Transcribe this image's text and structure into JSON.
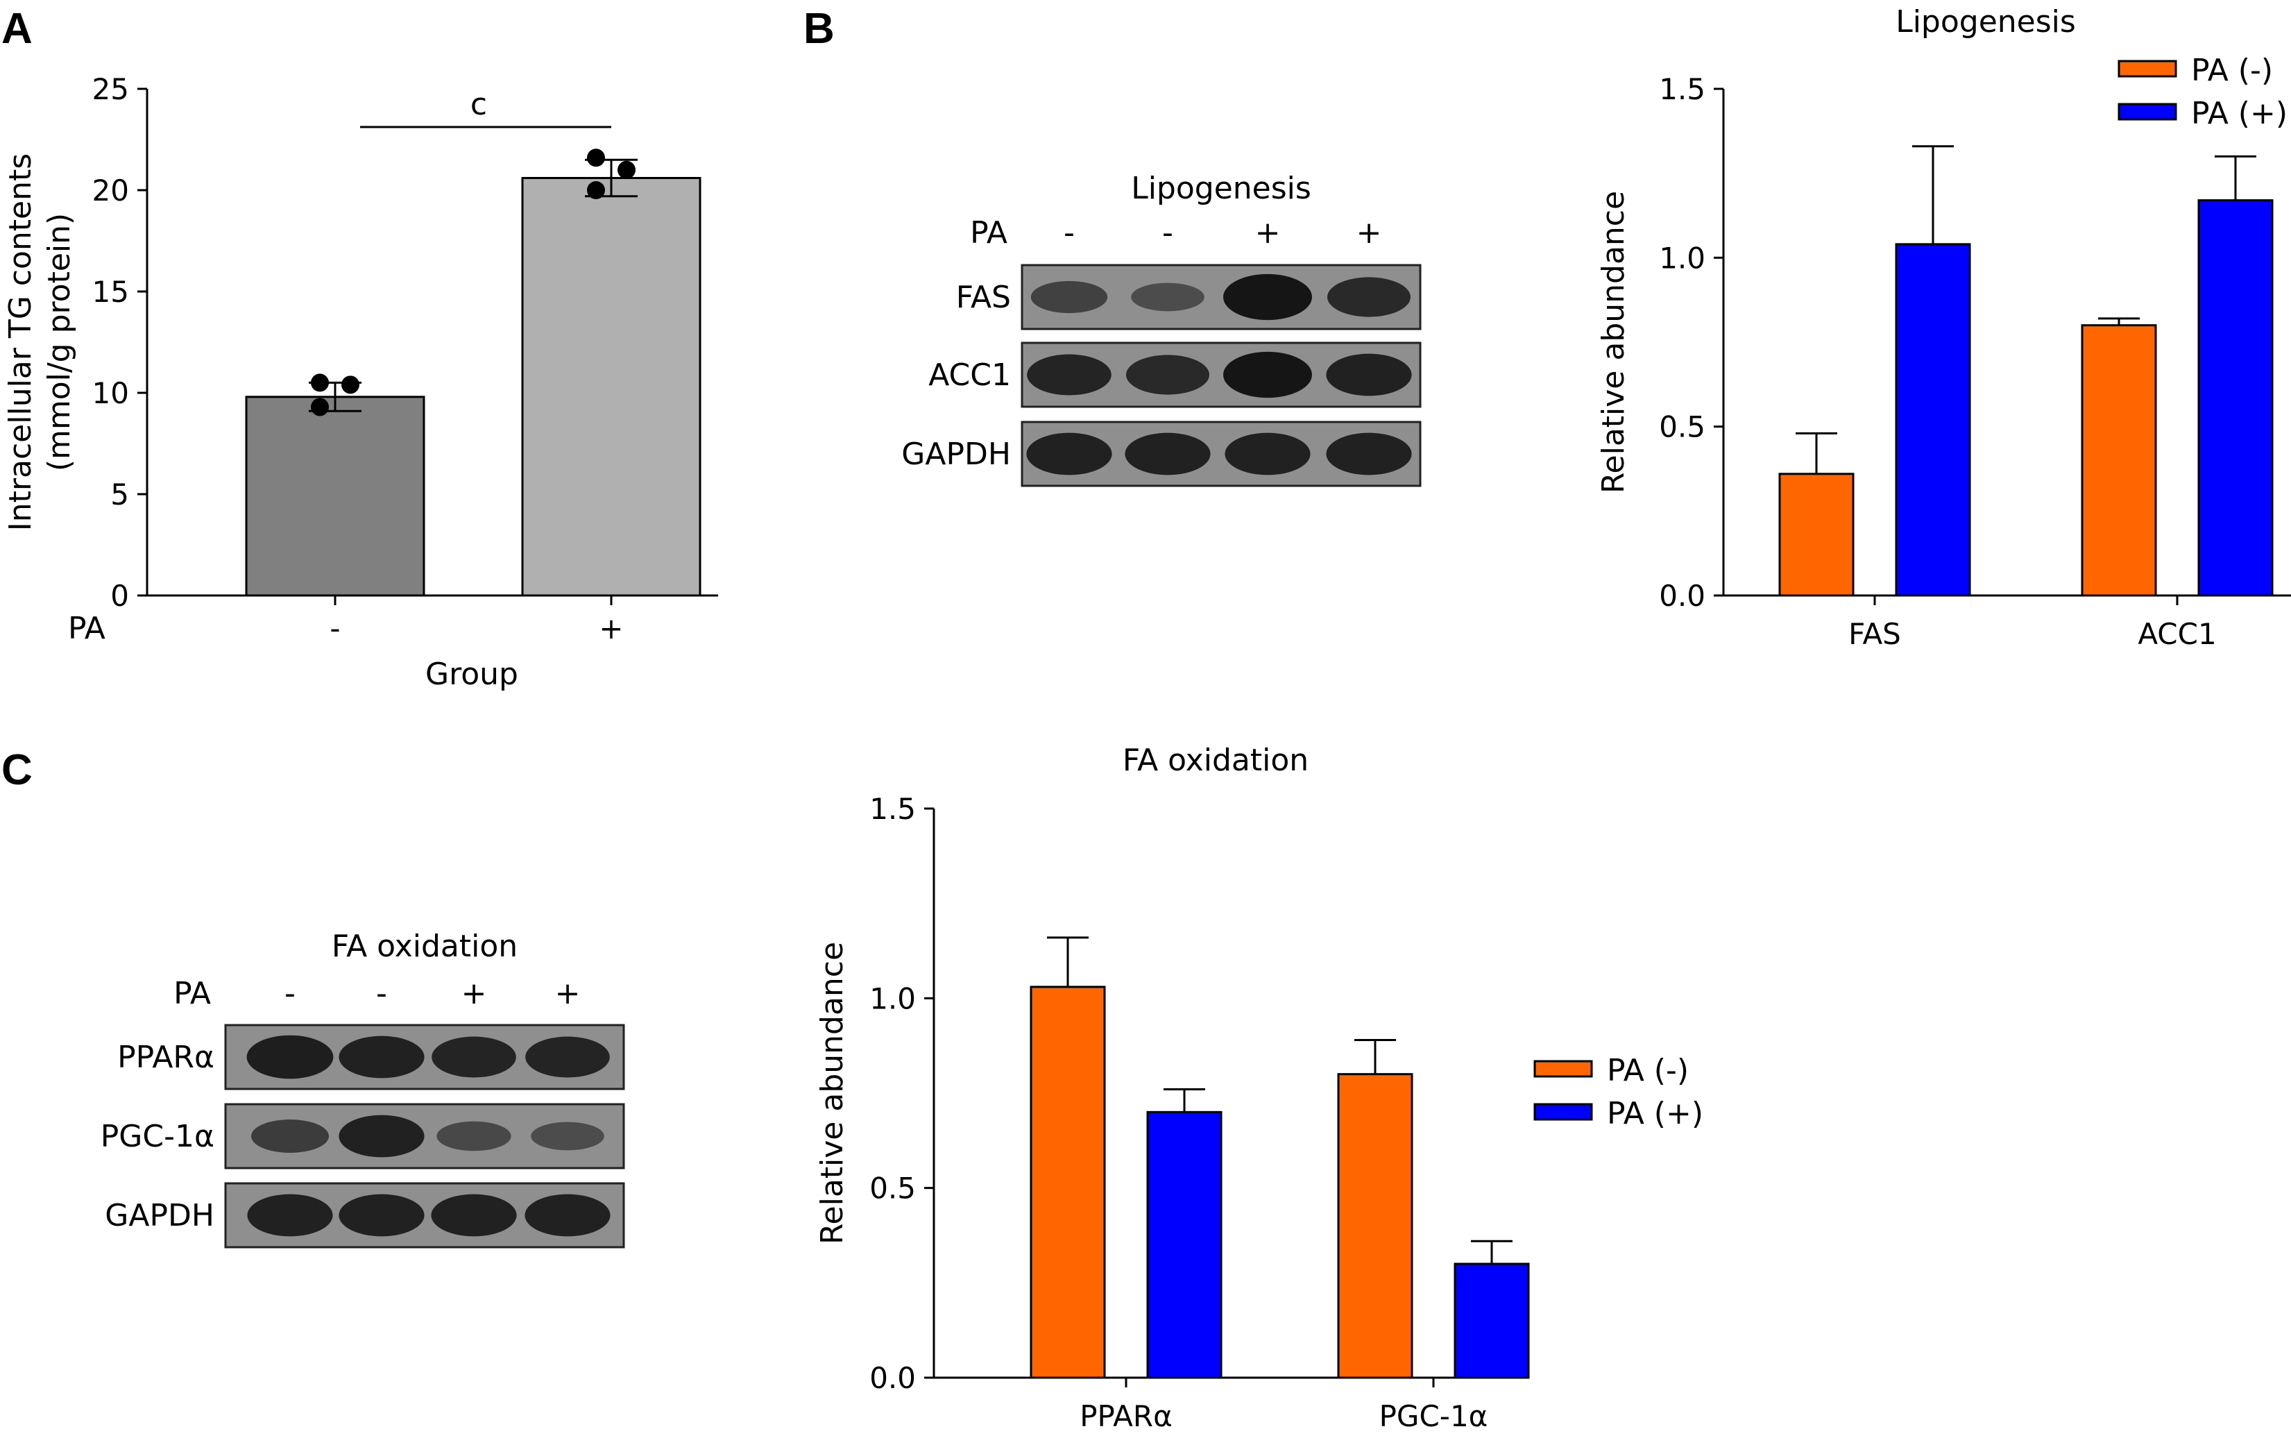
{
  "colors": {
    "pa_minus": "#FF6600",
    "pa_plus": "#0000FF",
    "bar_gray_minus": "#808080",
    "bar_gray_plus": "#B0B0B0",
    "blot_background": "#8F8F8F",
    "band": "#151515"
  },
  "panels": {
    "a": {
      "letter": "A"
    },
    "b": {
      "letter": "B",
      "blot": {
        "title": "Lipogenesis",
        "pa_label": "PA",
        "pa_signs": [
          "-",
          "-",
          "+",
          "+"
        ],
        "rows": [
          {
            "name": "FAS",
            "intensity": [
              0.45,
              0.3,
              1.0,
              0.75
            ]
          },
          {
            "name": "ACC1",
            "intensity": [
              0.8,
              0.75,
              1.0,
              0.85
            ]
          },
          {
            "name": "GAPDH",
            "intensity": [
              0.85,
              0.85,
              0.85,
              0.85
            ]
          }
        ]
      }
    },
    "c": {
      "letter": "C",
      "blot": {
        "title": "FA oxidation",
        "pa_label": "PA",
        "pa_signs": [
          "-",
          "-",
          "+",
          "+"
        ],
        "rows": [
          {
            "name": "PPARα",
            "intensity": [
              0.9,
              0.85,
              0.8,
              0.8
            ]
          },
          {
            "name": "PGC-1α",
            "intensity": [
              0.5,
              0.85,
              0.35,
              0.3
            ]
          },
          {
            "name": "GAPDH",
            "intensity": [
              0.85,
              0.85,
              0.85,
              0.85
            ]
          }
        ]
      }
    }
  },
  "chart_data": [
    {
      "id": "A",
      "type": "bar",
      "title": "",
      "ylabel_lines": [
        "Intracellular TG contents",
        "(mmol/g protein)"
      ],
      "xlabel": "Group",
      "x_prefix": "PA",
      "categories": [
        "-",
        "+"
      ],
      "values": [
        9.8,
        20.6
      ],
      "errors": [
        0.7,
        0.9
      ],
      "points": [
        [
          10.5,
          10.4,
          9.3
        ],
        [
          21.6,
          21.0,
          20.0
        ]
      ],
      "ylim": [
        0,
        25
      ],
      "yticks": [
        "0",
        "5",
        "10",
        "15",
        "20",
        "25"
      ],
      "significance": "c"
    },
    {
      "id": "B",
      "type": "bar",
      "title": "Lipogenesis",
      "ylabel": "Relative abundance",
      "categories": [
        "FAS",
        "ACC1"
      ],
      "series": [
        {
          "name": "PA (-)",
          "values": [
            0.36,
            0.8
          ],
          "errors": [
            0.12,
            0.02
          ]
        },
        {
          "name": "PA (+)",
          "values": [
            1.04,
            1.17
          ],
          "errors": [
            0.29,
            0.13
          ]
        }
      ],
      "ylim": [
        0,
        1.5
      ],
      "yticks": [
        "0.0",
        "0.5",
        "1.0",
        "1.5"
      ],
      "legend": "top-right"
    },
    {
      "id": "C",
      "type": "bar",
      "title": "FA oxidation",
      "ylabel": "Relative abundance",
      "categories": [
        "PPARα",
        "PGC-1α"
      ],
      "series": [
        {
          "name": "PA (-)",
          "values": [
            1.03,
            0.8
          ],
          "errors": [
            0.13,
            0.09
          ]
        },
        {
          "name": "PA (+)",
          "values": [
            0.7,
            0.3
          ],
          "errors": [
            0.06,
            0.06
          ]
        }
      ],
      "ylim": [
        0,
        1.5
      ],
      "yticks": [
        "0.0",
        "0.5",
        "1.0",
        "1.5"
      ],
      "legend": "right"
    }
  ]
}
